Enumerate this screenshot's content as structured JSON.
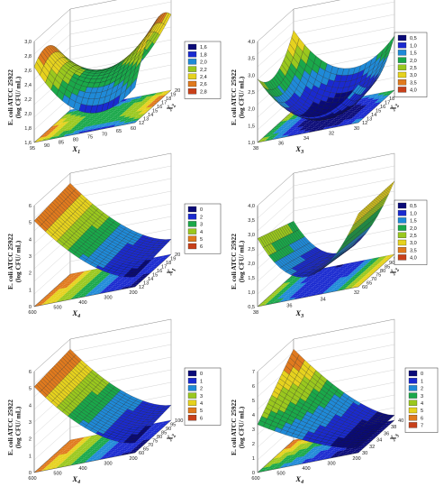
{
  "chart_data": [
    {
      "type": "surface",
      "zlabel": [
        "E. coli ATCC 25922",
        "(log CFU/ mL)"
      ],
      "xlabel": {
        "var": "X",
        "sub": "1"
      },
      "ylabel": {
        "var": "X",
        "sub": "2"
      },
      "z_ticks": [
        "1,6",
        "1,8",
        "2,0",
        "2,2",
        "2,4",
        "2,6",
        "2,8",
        "3,0"
      ],
      "x_ticks": [
        "95",
        "90",
        "85",
        "80",
        "75",
        "70",
        "65",
        "60"
      ],
      "y_ticks": [
        "12",
        "13",
        "14",
        "15",
        "16",
        "17",
        "18",
        "19",
        "20"
      ],
      "legend": [
        "1,6",
        "1,8",
        "2,0",
        "2,2",
        "2,4",
        "2,6",
        "2,8"
      ]
    },
    {
      "type": "surface",
      "zlabel": [
        "E. coli ATCC 25922",
        "(log CFU/ mL)"
      ],
      "xlabel": {
        "var": "X",
        "sub": "3"
      },
      "ylabel": {
        "var": "X",
        "sub": "2"
      },
      "z_ticks": [
        "1,0",
        "1,5",
        "2,0",
        "2,5",
        "3,0",
        "3,5",
        "4,0"
      ],
      "x_ticks": [
        "38",
        "36",
        "34",
        "32",
        "30"
      ],
      "y_ticks": [
        "12",
        "13",
        "14",
        "15",
        "16",
        "17",
        "18",
        "19",
        "20"
      ],
      "legend": [
        "0,5",
        "1,0",
        "1,5",
        "2,0",
        "2,5",
        "3,0",
        "3,5",
        "4,0"
      ]
    },
    {
      "type": "surface",
      "zlabel": [
        "E. coli ATCC 25922",
        "(log CFU/ mL)"
      ],
      "xlabel": {
        "var": "X",
        "sub": "4"
      },
      "ylabel": {
        "var": "X",
        "sub": "1"
      },
      "z_ticks": [
        "0",
        "1",
        "2",
        "3",
        "4",
        "5",
        "6"
      ],
      "x_ticks": [
        "600",
        "500",
        "400",
        "300",
        "200"
      ],
      "y_ticks": [
        "12",
        "13",
        "14",
        "15",
        "16",
        "17",
        "18",
        "19",
        "20"
      ],
      "legend": [
        "0",
        "2",
        "3",
        "4",
        "5",
        "6"
      ]
    },
    {
      "type": "surface",
      "zlabel": [
        "E. coli ATCC 25922",
        "(log CFU/ mL)"
      ],
      "xlabel": {
        "var": "X",
        "sub": "3"
      },
      "ylabel": {
        "var": "X",
        "sub": "2"
      },
      "z_ticks": [
        "0,5",
        "1,0",
        "1,5",
        "2,0",
        "2,5",
        "3,0",
        "3,5",
        "4,0"
      ],
      "x_ticks": [
        "38",
        "36",
        "34",
        "32"
      ],
      "y_ticks": [
        "60",
        "65",
        "70",
        "75",
        "80",
        "85",
        "90",
        "95",
        "100"
      ],
      "legend": [
        "0,5",
        "1,0",
        "1,5",
        "2,0",
        "2,5",
        "3,0",
        "3,5",
        "4,0"
      ]
    },
    {
      "type": "surface",
      "zlabel": [
        "E. coli ATCC 25922",
        "(log CFU/ mL)"
      ],
      "xlabel": {
        "var": "X",
        "sub": "4"
      },
      "ylabel": {
        "var": "X",
        "sub": "2"
      },
      "z_ticks": [
        "0",
        "1",
        "2",
        "3",
        "4",
        "5",
        "6"
      ],
      "x_ticks": [
        "600",
        "500",
        "400",
        "300",
        "200"
      ],
      "y_ticks": [
        "60",
        "65",
        "70",
        "75",
        "80",
        "85",
        "90",
        "95",
        "100"
      ],
      "legend": [
        "0",
        "1",
        "2",
        "3",
        "4",
        "5",
        "6"
      ]
    },
    {
      "type": "surface",
      "zlabel": [
        "E. coli ATCC 25922",
        "(log CFU/ mL)"
      ],
      "xlabel": {
        "var": "X",
        "sub": "4"
      },
      "ylabel": {
        "var": "X",
        "sub": "3"
      },
      "z_ticks": [
        "0",
        "1",
        "2",
        "3",
        "4",
        "5",
        "6",
        "7"
      ],
      "x_ticks": [
        "600",
        "500",
        "400",
        "300",
        "200"
      ],
      "y_ticks": [
        "30",
        "32",
        "34",
        "36",
        "38",
        "40"
      ],
      "legend": [
        "0",
        "1",
        "2",
        "3",
        "4",
        "5",
        "6",
        "7"
      ]
    }
  ]
}
